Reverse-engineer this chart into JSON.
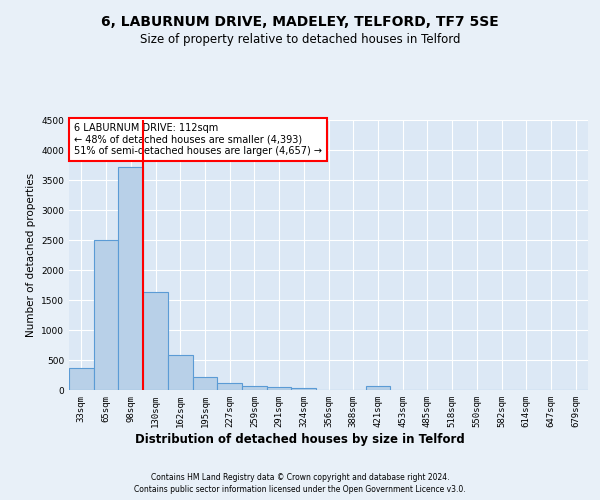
{
  "title": "6, LABURNUM DRIVE, MADELEY, TELFORD, TF7 5SE",
  "subtitle": "Size of property relative to detached houses in Telford",
  "xlabel": "Distribution of detached houses by size in Telford",
  "ylabel": "Number of detached properties",
  "bins": [
    "33sqm",
    "65sqm",
    "98sqm",
    "130sqm",
    "162sqm",
    "195sqm",
    "227sqm",
    "259sqm",
    "291sqm",
    "324sqm",
    "356sqm",
    "388sqm",
    "421sqm",
    "453sqm",
    "485sqm",
    "518sqm",
    "550sqm",
    "582sqm",
    "614sqm",
    "647sqm",
    "679sqm"
  ],
  "values": [
    370,
    2500,
    3720,
    1630,
    590,
    225,
    110,
    70,
    45,
    35,
    0,
    0,
    65,
    0,
    0,
    0,
    0,
    0,
    0,
    0,
    0
  ],
  "bar_color": "#b8d0e8",
  "bar_edge_color": "#5b9bd5",
  "vline_color": "red",
  "vline_pos": 2.5,
  "annotation_text": "6 LABURNUM DRIVE: 112sqm\n← 48% of detached houses are smaller (4,393)\n51% of semi-detached houses are larger (4,657) →",
  "annotation_box_color": "white",
  "annotation_box_edge_color": "red",
  "ylim": [
    0,
    4500
  ],
  "yticks": [
    0,
    500,
    1000,
    1500,
    2000,
    2500,
    3000,
    3500,
    4000,
    4500
  ],
  "footer1": "Contains HM Land Registry data © Crown copyright and database right 2024.",
  "footer2": "Contains public sector information licensed under the Open Government Licence v3.0.",
  "bg_color": "#e8f0f8",
  "plot_bg_color": "#dce8f5",
  "grid_color": "#ffffff",
  "title_fontsize": 10,
  "subtitle_fontsize": 8.5,
  "tick_fontsize": 6.5,
  "ylabel_fontsize": 7.5,
  "xlabel_fontsize": 8.5,
  "annotation_fontsize": 7,
  "footer_fontsize": 5.5
}
